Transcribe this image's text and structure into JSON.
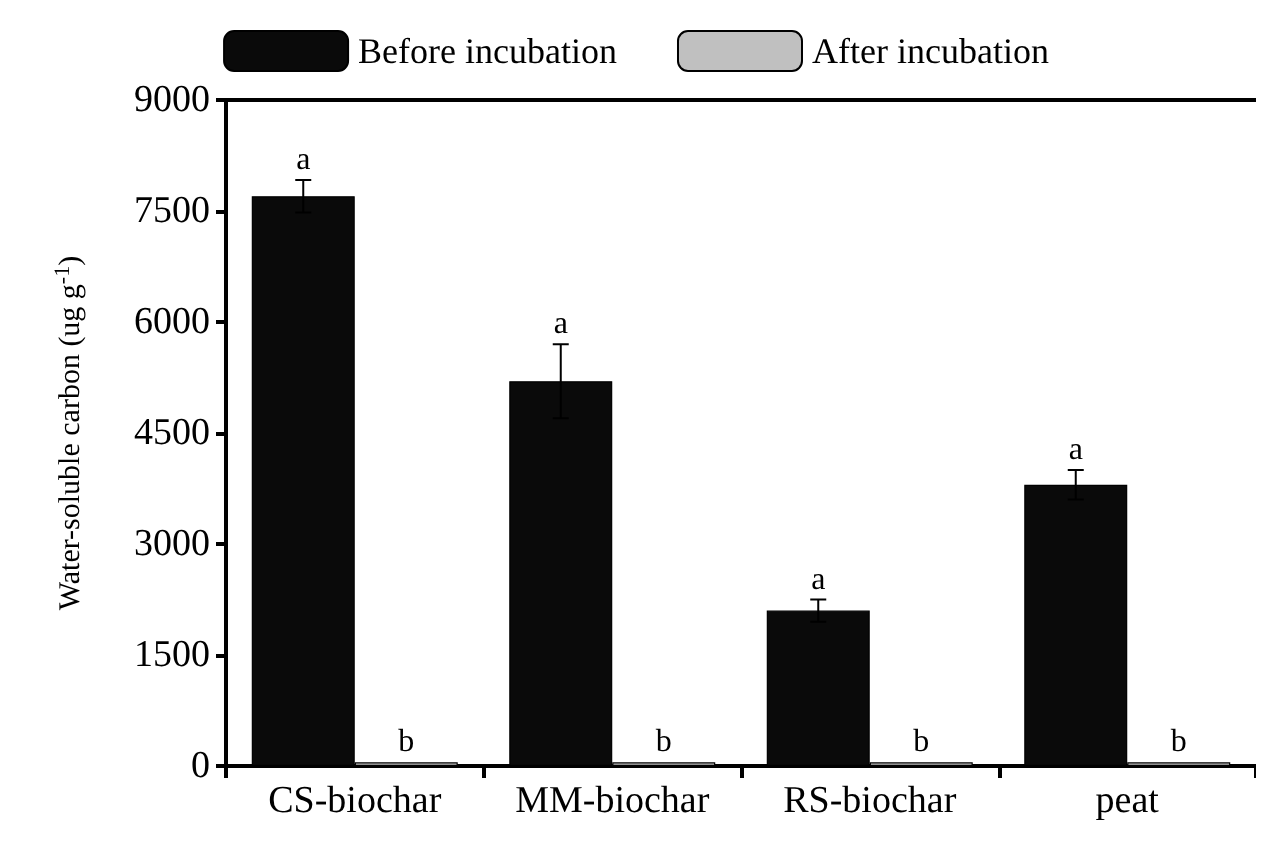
{
  "chart_data": {
    "type": "bar",
    "ylabel": "Water-soluble carbon (ug g$^{-1}$)",
    "categories": [
      "CS-biochar",
      "MM-biochar",
      "RS-biochar",
      "peat"
    ],
    "series": [
      {
        "name": "Before incubation",
        "color": "#0a0a0a",
        "values": [
          7700,
          5200,
          2100,
          3800
        ],
        "errors": [
          220,
          500,
          150,
          200
        ],
        "value_labels": [
          "a",
          "a",
          "a",
          "a"
        ]
      },
      {
        "name": "After incubation",
        "color": "#c0c0c0",
        "values": [
          50,
          50,
          50,
          50
        ],
        "value_labels": [
          "b",
          "b",
          "b",
          "b"
        ]
      }
    ],
    "ylim": [
      0,
      9000
    ],
    "yticks": [
      0,
      1500,
      3000,
      4500,
      6000,
      7500,
      9000
    ],
    "grid": false,
    "legend": "top"
  }
}
